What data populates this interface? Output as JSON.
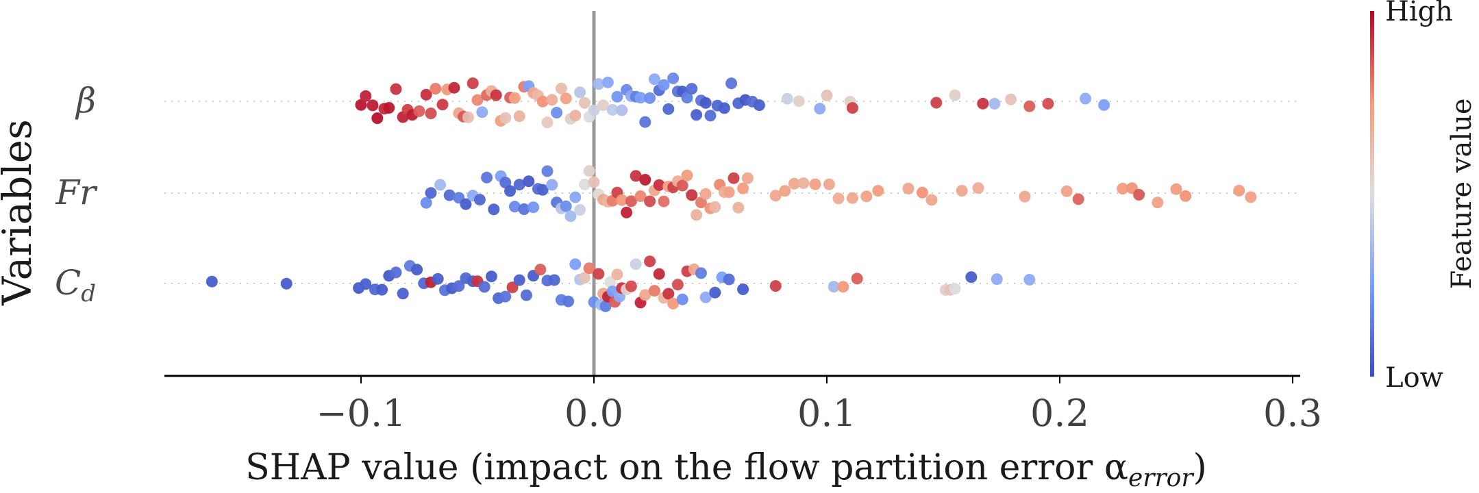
{
  "chart_data": {
    "type": "scatter",
    "subtype": "shap-beeswarm",
    "title": "",
    "xlabel": "SHAP value (impact on the flow partition error α",
    "xlabel_sub": "error",
    "xlabel_tail": ")",
    "ylabel": "Variables",
    "xlim": [
      -0.185,
      0.305
    ],
    "xticks": [
      {
        "value": -0.1,
        "label": "−0.1"
      },
      {
        "value": 0.0,
        "label": "0.0"
      },
      {
        "value": 0.1,
        "label": "0.1"
      },
      {
        "value": 0.2,
        "label": "0.2"
      },
      {
        "value": 0.3,
        "label": "0.3"
      }
    ],
    "zero_line": 0.0,
    "colorbar": {
      "label": "Feature value",
      "high_label": "High",
      "low_label": "Low",
      "low_color": "#3b4cc0",
      "mid_color": "#dddddd",
      "high_color": "#b40426"
    },
    "features": [
      {
        "name": "β",
        "label_main": "β",
        "label_sub": "",
        "points": [
          [
            -0.1,
            0.97
          ],
          [
            -0.098,
            0.95
          ],
          [
            -0.095,
            0.96
          ],
          [
            -0.093,
            0.98
          ],
          [
            -0.09,
            0.94
          ],
          [
            -0.088,
            0.97
          ],
          [
            -0.085,
            0.92
          ],
          [
            -0.082,
            0.95
          ],
          [
            -0.08,
            0.9
          ],
          [
            -0.078,
            0.96
          ],
          [
            -0.075,
            0.85
          ],
          [
            -0.072,
            0.93
          ],
          [
            -0.07,
            0.88
          ],
          [
            -0.068,
            0.8
          ],
          [
            -0.065,
            0.91
          ],
          [
            -0.063,
            0.75
          ],
          [
            -0.06,
            0.94
          ],
          [
            -0.058,
            0.7
          ],
          [
            -0.056,
            0.86
          ],
          [
            -0.054,
            0.62
          ],
          [
            -0.052,
            0.9
          ],
          [
            -0.05,
            0.78
          ],
          [
            -0.048,
            0.3
          ],
          [
            -0.046,
            0.83
          ],
          [
            -0.044,
            0.68
          ],
          [
            -0.042,
            0.92
          ],
          [
            -0.04,
            0.74
          ],
          [
            -0.038,
            0.6
          ],
          [
            -0.036,
            0.85
          ],
          [
            -0.034,
            0.72
          ],
          [
            -0.032,
            0.66
          ],
          [
            -0.03,
            0.8
          ],
          [
            -0.028,
            0.25
          ],
          [
            -0.026,
            0.7
          ],
          [
            -0.024,
            0.64
          ],
          [
            -0.022,
            0.76
          ],
          [
            -0.02,
            0.58
          ],
          [
            -0.018,
            0.68
          ],
          [
            -0.016,
            0.2
          ],
          [
            -0.014,
            0.62
          ],
          [
            -0.012,
            0.72
          ],
          [
            -0.01,
            0.55
          ],
          [
            -0.008,
            0.66
          ],
          [
            -0.006,
            0.4
          ],
          [
            -0.004,
            0.6
          ],
          [
            -0.002,
            0.5
          ],
          [
            0.0,
            0.45
          ],
          [
            0.002,
            0.35
          ],
          [
            0.004,
            0.55
          ],
          [
            0.006,
            0.28
          ],
          [
            0.008,
            0.42
          ],
          [
            0.01,
            0.22
          ],
          [
            0.012,
            0.38
          ],
          [
            0.014,
            0.18
          ],
          [
            0.016,
            0.3
          ],
          [
            0.018,
            0.15
          ],
          [
            0.02,
            0.25
          ],
          [
            0.022,
            0.12
          ],
          [
            0.024,
            0.2
          ],
          [
            0.026,
            0.3
          ],
          [
            0.028,
            0.1
          ],
          [
            0.03,
            0.22
          ],
          [
            0.032,
            0.08
          ],
          [
            0.034,
            0.18
          ],
          [
            0.036,
            0.12
          ],
          [
            0.038,
            0.05
          ],
          [
            0.04,
            0.15
          ],
          [
            0.042,
            0.1
          ],
          [
            0.044,
            0.06
          ],
          [
            0.046,
            0.12
          ],
          [
            0.048,
            0.04
          ],
          [
            0.05,
            0.1
          ],
          [
            0.053,
            0.08
          ],
          [
            0.056,
            0.05
          ],
          [
            0.059,
            0.12
          ],
          [
            0.062,
            0.08
          ],
          [
            0.065,
            0.03
          ],
          [
            0.068,
            0.1
          ],
          [
            0.071,
            0.06
          ],
          [
            0.083,
            0.45
          ],
          [
            0.088,
            0.55
          ],
          [
            0.097,
            0.3
          ],
          [
            0.1,
            0.6
          ],
          [
            0.11,
            0.55
          ],
          [
            0.111,
            0.9
          ],
          [
            0.147,
            0.9
          ],
          [
            0.155,
            0.55
          ],
          [
            0.167,
            0.92
          ],
          [
            0.172,
            0.35
          ],
          [
            0.179,
            0.6
          ],
          [
            0.187,
            0.85
          ],
          [
            0.195,
            0.88
          ],
          [
            0.211,
            0.3
          ],
          [
            0.219,
            0.25
          ]
        ]
      },
      {
        "name": "Fr",
        "label_main": "Fr",
        "label_sub": "",
        "points": [
          [
            -0.072,
            0.2
          ],
          [
            -0.07,
            0.08
          ],
          [
            -0.066,
            0.35
          ],
          [
            -0.062,
            0.1
          ],
          [
            -0.058,
            0.15
          ],
          [
            -0.055,
            0.05
          ],
          [
            -0.052,
            0.3
          ],
          [
            -0.049,
            0.08
          ],
          [
            -0.046,
            0.12
          ],
          [
            -0.043,
            0.06
          ],
          [
            -0.04,
            0.25
          ],
          [
            -0.038,
            0.1
          ],
          [
            -0.036,
            0.05
          ],
          [
            -0.034,
            0.18
          ],
          [
            -0.032,
            0.08
          ],
          [
            -0.03,
            0.12
          ],
          [
            -0.028,
            0.04
          ],
          [
            -0.026,
            0.22
          ],
          [
            -0.024,
            0.1
          ],
          [
            -0.022,
            0.06
          ],
          [
            -0.02,
            0.15
          ],
          [
            -0.018,
            0.3
          ],
          [
            -0.016,
            0.12
          ],
          [
            -0.014,
            0.4
          ],
          [
            -0.012,
            0.2
          ],
          [
            -0.01,
            0.35
          ],
          [
            -0.008,
            0.28
          ],
          [
            -0.006,
            0.45
          ],
          [
            -0.004,
            0.5
          ],
          [
            -0.002,
            0.55
          ],
          [
            0.0,
            0.6
          ],
          [
            0.002,
            0.52
          ],
          [
            0.004,
            0.7
          ],
          [
            0.006,
            0.65
          ],
          [
            0.008,
            0.8
          ],
          [
            0.01,
            0.9
          ],
          [
            0.012,
            0.75
          ],
          [
            0.014,
            0.95
          ],
          [
            0.016,
            0.85
          ],
          [
            0.018,
            0.92
          ],
          [
            0.02,
            0.78
          ],
          [
            0.022,
            0.96
          ],
          [
            0.024,
            0.88
          ],
          [
            0.026,
            0.7
          ],
          [
            0.028,
            0.93
          ],
          [
            0.03,
            0.82
          ],
          [
            0.032,
            0.72
          ],
          [
            0.034,
            0.9
          ],
          [
            0.036,
            0.68
          ],
          [
            0.038,
            0.86
          ],
          [
            0.04,
            0.74
          ],
          [
            0.042,
            0.92
          ],
          [
            0.044,
            0.66
          ],
          [
            0.046,
            0.8
          ],
          [
            0.048,
            0.7
          ],
          [
            0.05,
            0.76
          ],
          [
            0.052,
            0.64
          ],
          [
            0.054,
            0.78
          ],
          [
            0.056,
            0.68
          ],
          [
            0.058,
            0.72
          ],
          [
            0.06,
            0.9
          ],
          [
            0.062,
            0.66
          ],
          [
            0.064,
            0.74
          ],
          [
            0.066,
            0.7
          ],
          [
            0.078,
            0.7
          ],
          [
            0.082,
            0.72
          ],
          [
            0.086,
            0.7
          ],
          [
            0.09,
            0.66
          ],
          [
            0.095,
            0.72
          ],
          [
            0.101,
            0.7
          ],
          [
            0.105,
            0.68
          ],
          [
            0.111,
            0.7
          ],
          [
            0.117,
            0.72
          ],
          [
            0.122,
            0.74
          ],
          [
            0.135,
            0.7
          ],
          [
            0.141,
            0.76
          ],
          [
            0.145,
            0.7
          ],
          [
            0.158,
            0.7
          ],
          [
            0.165,
            0.68
          ],
          [
            0.185,
            0.7
          ],
          [
            0.203,
            0.72
          ],
          [
            0.208,
            0.84
          ],
          [
            0.227,
            0.74
          ],
          [
            0.231,
            0.76
          ],
          [
            0.234,
            0.86
          ],
          [
            0.242,
            0.72
          ],
          [
            0.25,
            0.74
          ],
          [
            0.254,
            0.76
          ],
          [
            0.277,
            0.74
          ],
          [
            0.282,
            0.72
          ]
        ]
      },
      {
        "name": "C_d",
        "label_main": "C",
        "label_sub": "d",
        "points": [
          [
            -0.164,
            0.05
          ],
          [
            -0.132,
            0.05
          ],
          [
            -0.101,
            0.05
          ],
          [
            -0.098,
            0.06
          ],
          [
            -0.094,
            0.08
          ],
          [
            -0.091,
            0.05
          ],
          [
            -0.088,
            0.04
          ],
          [
            -0.085,
            0.1
          ],
          [
            -0.082,
            0.06
          ],
          [
            -0.079,
            0.15
          ],
          [
            -0.076,
            0.05
          ],
          [
            -0.073,
            0.08
          ],
          [
            -0.07,
            0.95
          ],
          [
            -0.067,
            0.06
          ],
          [
            -0.064,
            0.12
          ],
          [
            -0.061,
            0.05
          ],
          [
            -0.058,
            0.1
          ],
          [
            -0.055,
            0.08
          ],
          [
            -0.052,
            0.06
          ],
          [
            -0.05,
            0.92
          ],
          [
            -0.047,
            0.1
          ],
          [
            -0.044,
            0.05
          ],
          [
            -0.041,
            0.08
          ],
          [
            -0.038,
            0.12
          ],
          [
            -0.035,
            0.9
          ],
          [
            -0.032,
            0.06
          ],
          [
            -0.029,
            0.1
          ],
          [
            -0.026,
            0.05
          ],
          [
            -0.023,
            0.85
          ],
          [
            -0.02,
            0.1
          ],
          [
            -0.017,
            0.08
          ],
          [
            -0.014,
            0.15
          ],
          [
            -0.011,
            0.12
          ],
          [
            -0.008,
            0.25
          ],
          [
            -0.006,
            0.4
          ],
          [
            -0.004,
            0.6
          ],
          [
            -0.002,
            0.8
          ],
          [
            0.0,
            0.2
          ],
          [
            0.002,
            0.9
          ],
          [
            0.003,
            0.35
          ],
          [
            0.004,
            0.7
          ],
          [
            0.005,
            0.15
          ],
          [
            0.006,
            0.95
          ],
          [
            0.007,
            0.5
          ],
          [
            0.008,
            0.25
          ],
          [
            0.009,
            0.85
          ],
          [
            0.01,
            0.65
          ],
          [
            0.011,
            0.3
          ],
          [
            0.012,
            0.92
          ],
          [
            0.014,
            0.55
          ],
          [
            0.016,
            0.88
          ],
          [
            0.018,
            0.45
          ],
          [
            0.02,
            0.95
          ],
          [
            0.022,
            0.7
          ],
          [
            0.024,
            0.9
          ],
          [
            0.026,
            0.8
          ],
          [
            0.028,
            0.94
          ],
          [
            0.03,
            0.65
          ],
          [
            0.032,
            0.92
          ],
          [
            0.034,
            0.75
          ],
          [
            0.036,
            0.88
          ],
          [
            0.038,
            0.2
          ],
          [
            0.04,
            0.9
          ],
          [
            0.043,
            0.7
          ],
          [
            0.046,
            0.15
          ],
          [
            0.048,
            0.3
          ],
          [
            0.052,
            0.05
          ],
          [
            0.055,
            0.25
          ],
          [
            0.058,
            0.1
          ],
          [
            0.064,
            0.05
          ],
          [
            0.078,
            0.9
          ],
          [
            0.103,
            0.35
          ],
          [
            0.107,
            0.75
          ],
          [
            0.113,
            0.85
          ],
          [
            0.151,
            0.55
          ],
          [
            0.153,
            0.6
          ],
          [
            0.155,
            0.5
          ],
          [
            0.162,
            0.05
          ],
          [
            0.173,
            0.3
          ],
          [
            0.187,
            0.3
          ]
        ]
      }
    ]
  }
}
